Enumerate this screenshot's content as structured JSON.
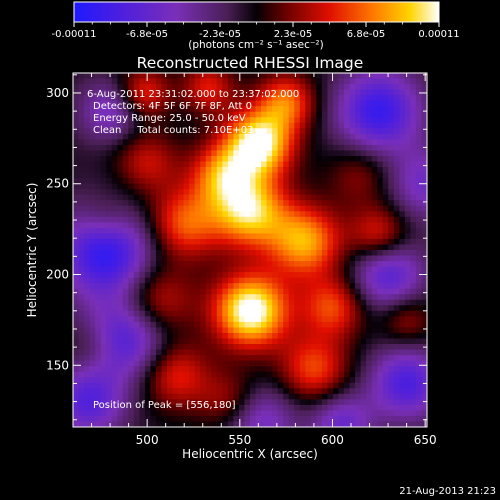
{
  "chart_data": {
    "type": "heatmap",
    "title": "Reconstructed RHESSI Image",
    "xlabel": "Heliocentric X (arcsec)",
    "ylabel": "Heliocentric Y (arcsec)",
    "xlim": [
      460,
      651
    ],
    "ylim": [
      116,
      311
    ],
    "x_ticks": [
      500,
      550,
      600,
      650
    ],
    "y_ticks": [
      150,
      200,
      250,
      300
    ],
    "colorbar": {
      "range": [
        -0.00011,
        0.00011
      ],
      "tick_labels": [
        "-0.00011",
        "-6.8e-05",
        "-2.3e-05",
        "2.3e-05",
        "6.8e-05",
        "0.00011"
      ],
      "unit_label": "(photons cm⁻² s⁻¹ asec⁻²)",
      "colormap": "blue-purple-black-red-yellow-white"
    },
    "annotations": {
      "time_range": "6-Aug-2011 23:31:02.000 to 23:37:02.000",
      "detectors": "Detectors: 4F 5F 6F 7F 8F, Att 0",
      "energy": "Energy Range: 25.0 - 50.0 keV",
      "clean": "Clean     Total counts: 7.10E+03",
      "peak": "Position of Peak = [556,180]"
    },
    "peak_position": [
      556,
      180
    ],
    "timestamp": "21-Aug-2013 21:23"
  }
}
